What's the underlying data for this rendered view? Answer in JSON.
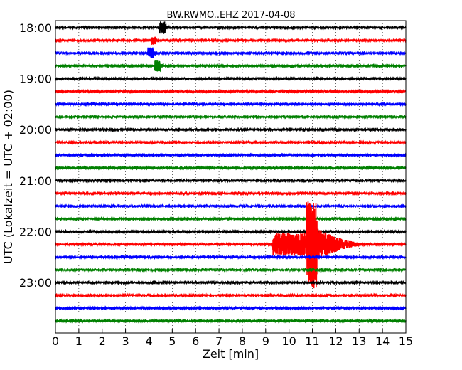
{
  "chart_data": {
    "type": "line",
    "subtype": "seismogram-helicorder",
    "title": "BW.RWMO..EHZ 2017-04-08",
    "xlabel": "Zeit  [min]",
    "ylabel": "UTC (Lokalzeit = UTC + 02:00)",
    "xlim": [
      0,
      15
    ],
    "x_ticks": [
      0,
      1,
      2,
      3,
      4,
      5,
      6,
      7,
      8,
      9,
      10,
      11,
      12,
      13,
      14,
      15
    ],
    "y_tick_labels": [
      "18:00",
      "19:00",
      "20:00",
      "21:00",
      "22:00",
      "23:00"
    ],
    "line_interval_minutes": 15,
    "grid": "vertical dotted lines at each minute",
    "line_colors": [
      "#000000",
      "#ff0000",
      "#0000ff",
      "#008000"
    ],
    "traces": [
      {
        "start": "18:00",
        "color_index": 0,
        "events": [
          {
            "t": 4.45,
            "amp": 0.5,
            "dur": 0.25
          },
          {
            "t": 6.8,
            "amp": 0.12,
            "dur": 0.05
          }
        ]
      },
      {
        "start": "18:15",
        "color_index": 1,
        "events": [
          {
            "t": 4.1,
            "amp": 0.35,
            "dur": 0.2
          }
        ]
      },
      {
        "start": "18:30",
        "color_index": 2,
        "events": [
          {
            "t": 3.95,
            "amp": 0.45,
            "dur": 0.25
          },
          {
            "t": 6.85,
            "amp": 0.12,
            "dur": 0.05
          },
          {
            "t": 10.8,
            "amp": 0.08,
            "dur": 0.05
          }
        ]
      },
      {
        "start": "18:45",
        "color_index": 3,
        "events": [
          {
            "t": 4.25,
            "amp": 0.45,
            "dur": 0.25
          },
          {
            "t": 9.1,
            "amp": 0.1,
            "dur": 0.05
          }
        ]
      },
      {
        "start": "19:00",
        "color_index": 0,
        "events": []
      },
      {
        "start": "19:15",
        "color_index": 1,
        "events": []
      },
      {
        "start": "19:30",
        "color_index": 2,
        "events": []
      },
      {
        "start": "19:45",
        "color_index": 3,
        "events": []
      },
      {
        "start": "20:00",
        "color_index": 0,
        "events": [
          {
            "t": 6.85,
            "amp": 0.12,
            "dur": 0.05
          }
        ]
      },
      {
        "start": "20:15",
        "color_index": 1,
        "events": []
      },
      {
        "start": "20:30",
        "color_index": 2,
        "events": []
      },
      {
        "start": "20:45",
        "color_index": 3,
        "events": []
      },
      {
        "start": "21:00",
        "color_index": 0,
        "events": []
      },
      {
        "start": "21:15",
        "color_index": 1,
        "events": []
      },
      {
        "start": "21:30",
        "color_index": 2,
        "events": []
      },
      {
        "start": "21:45",
        "color_index": 3,
        "events": []
      },
      {
        "start": "22:00",
        "color_index": 0,
        "events": []
      },
      {
        "start": "22:15",
        "color_index": 1,
        "events": [
          {
            "t": 9.3,
            "amp": 0.9,
            "dur": 1.4,
            "tail": 3.0,
            "shape": "earthquake-onset"
          },
          {
            "t": 10.75,
            "amp": 3.5,
            "dur": 0.45,
            "tail": 2.5,
            "shape": "earthquake-peak"
          }
        ]
      },
      {
        "start": "22:30",
        "color_index": 2,
        "events": [
          {
            "t": 2.6,
            "amp": 0.1,
            "dur": 0.3
          }
        ]
      },
      {
        "start": "22:45",
        "color_index": 3,
        "events": [
          {
            "t": 6.8,
            "amp": 0.1,
            "dur": 0.05
          }
        ]
      },
      {
        "start": "23:00",
        "color_index": 0,
        "events": []
      },
      {
        "start": "23:15",
        "color_index": 1,
        "events": []
      },
      {
        "start": "23:30",
        "color_index": 2,
        "events": []
      },
      {
        "start": "23:45",
        "color_index": 3,
        "events": []
      }
    ]
  }
}
